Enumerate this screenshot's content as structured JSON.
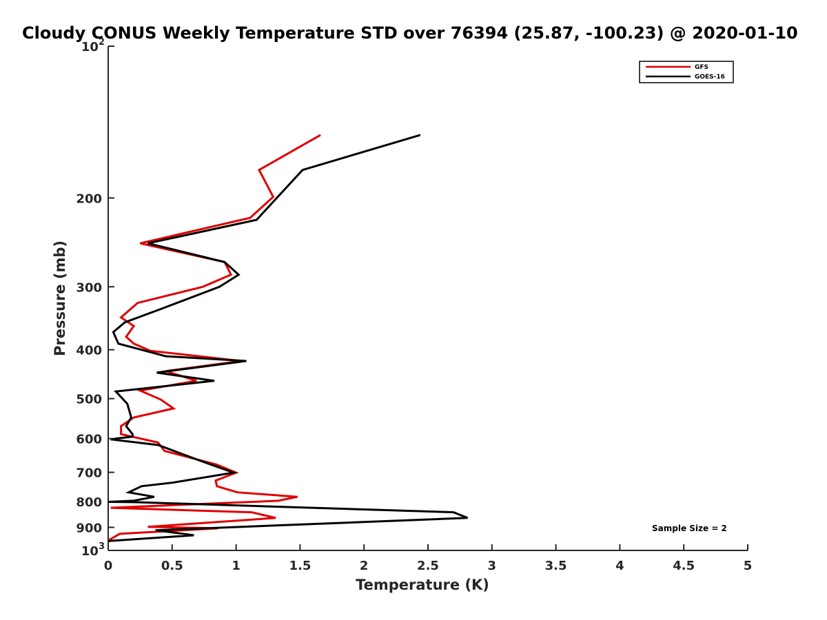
{
  "chart_data": {
    "type": "line",
    "title": "Cloudy CONUS Weekly Temperature STD over 76394 (25.87, -100.23) @ 2020-01-10",
    "xlabel": "Temperature (K)",
    "ylabel": "Pressure (mb)",
    "xlim": [
      0,
      5
    ],
    "ylim": [
      100,
      1000
    ],
    "y_scale": "log",
    "y_reversed": true,
    "x_ticks": [
      "0",
      "0.5",
      "1",
      "1.5",
      "2",
      "2.5",
      "3",
      "3.5",
      "4",
      "4.5",
      "5"
    ],
    "y_ticks": [
      {
        "value": 100,
        "label": "10",
        "sup": "2"
      },
      {
        "value": 200,
        "label": "200",
        "sup": ""
      },
      {
        "value": 300,
        "label": "300",
        "sup": ""
      },
      {
        "value": 400,
        "label": "400",
        "sup": ""
      },
      {
        "value": 500,
        "label": "500",
        "sup": ""
      },
      {
        "value": 600,
        "label": "600",
        "sup": ""
      },
      {
        "value": 700,
        "label": "700",
        "sup": ""
      },
      {
        "value": 800,
        "label": "800",
        "sup": ""
      },
      {
        "value": 900,
        "label": "900",
        "sup": ""
      },
      {
        "value": 1000,
        "label": "10",
        "sup": "3"
      }
    ],
    "legend_position": "top-right",
    "grid": false,
    "annotation": "Sample Size = 2",
    "series": [
      {
        "name": "GFS",
        "color": "#e00000",
        "points": [
          [
            1.66,
            150
          ],
          [
            1.18,
            176
          ],
          [
            1.29,
            199
          ],
          [
            1.11,
            219
          ],
          [
            0.25,
            246
          ],
          [
            0.91,
            268
          ],
          [
            0.96,
            284
          ],
          [
            0.74,
            300
          ],
          [
            0.23,
            323
          ],
          [
            0.1,
            345
          ],
          [
            0.2,
            359
          ],
          [
            0.14,
            377
          ],
          [
            0.2,
            389
          ],
          [
            0.33,
            402
          ],
          [
            1.04,
            421
          ],
          [
            0.45,
            441
          ],
          [
            0.69,
            461
          ],
          [
            0.25,
            482
          ],
          [
            0.41,
            502
          ],
          [
            0.51,
            523
          ],
          [
            0.2,
            545
          ],
          [
            0.1,
            567
          ],
          [
            0.1,
            588
          ],
          [
            0.39,
            611
          ],
          [
            0.44,
            635
          ],
          [
            0.85,
            676
          ],
          [
            1.0,
            701
          ],
          [
            0.84,
            727
          ],
          [
            0.85,
            746
          ],
          [
            1.01,
            767
          ],
          [
            1.48,
            783
          ],
          [
            1.33,
            797
          ],
          [
            0.02,
            823
          ],
          [
            1.12,
            840
          ],
          [
            1.31,
            862
          ],
          [
            0.31,
            898
          ],
          [
            0.86,
            904
          ],
          [
            0.09,
            927
          ],
          [
            0.0,
            956
          ]
        ]
      },
      {
        "name": "GOES-16",
        "color": "#000000",
        "points": [
          [
            2.44,
            150
          ],
          [
            1.52,
            176
          ],
          [
            1.16,
            221
          ],
          [
            0.31,
            246
          ],
          [
            0.91,
            268
          ],
          [
            1.02,
            284
          ],
          [
            0.87,
            300
          ],
          [
            0.4,
            333
          ],
          [
            0.13,
            353
          ],
          [
            0.04,
            369
          ],
          [
            0.08,
            389
          ],
          [
            0.45,
            412
          ],
          [
            1.08,
            421
          ],
          [
            0.38,
            444
          ],
          [
            0.83,
            461
          ],
          [
            0.06,
            484
          ],
          [
            0.15,
            512
          ],
          [
            0.18,
            545
          ],
          [
            0.14,
            567
          ],
          [
            0.19,
            588
          ],
          [
            0.19,
            595
          ],
          [
            0.06,
            600
          ],
          [
            0.04,
            603
          ],
          [
            0.39,
            618
          ],
          [
            0.72,
            664
          ],
          [
            0.98,
            701
          ],
          [
            0.5,
            734
          ],
          [
            0.26,
            746
          ],
          [
            0.16,
            767
          ],
          [
            0.36,
            783
          ],
          [
            0.2,
            797
          ],
          [
            0.0,
            801
          ],
          [
            0.2,
            802
          ],
          [
            2.7,
            840
          ],
          [
            2.81,
            862
          ],
          [
            0.37,
            912
          ],
          [
            0.67,
            933
          ],
          [
            0.0,
            958
          ]
        ]
      }
    ]
  }
}
